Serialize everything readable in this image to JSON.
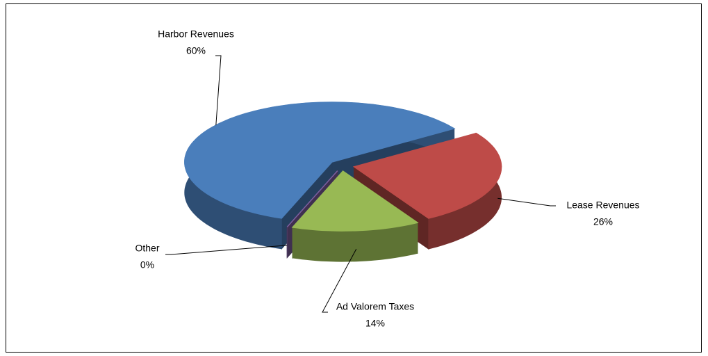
{
  "chart_data": {
    "type": "pie3d",
    "categories": [
      "Harbor Revenues",
      "Lease Revenues",
      "Ad Valorem Taxes",
      "Other"
    ],
    "values": [
      60,
      26,
      14,
      0
    ],
    "value_labels": [
      "60%",
      "26%",
      "14%",
      "0%"
    ],
    "colors": [
      "#4a7ebb",
      "#be4b48",
      "#98b954",
      "#7d5fa0"
    ]
  }
}
